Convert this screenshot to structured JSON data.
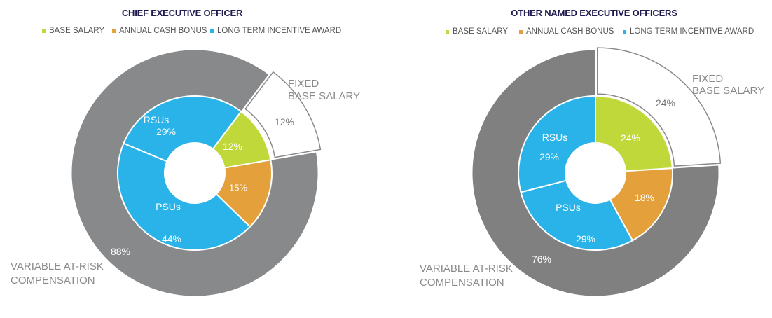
{
  "colors": {
    "base_salary": "#c1d83b",
    "annual_cash_bonus": "#e4a03b",
    "long_term_incentive": "#29b3e8",
    "variable": "#88898b",
    "variable_right": "#808080",
    "fixed_outline": "#8a8a8a",
    "title": "#1f1a50"
  },
  "legend": [
    "BASE SALARY",
    "ANNUAL CASH BONUS",
    "LONG TERM INCENTIVE AWARD"
  ],
  "chart_data": [
    {
      "type": "pie",
      "title": "CHIEF EXECUTIVE OFFICER",
      "inner": [
        {
          "name": "Base Salary",
          "label": "",
          "value": 12,
          "text": "12%"
        },
        {
          "name": "Annual Cash Bonus",
          "label": "",
          "value": 15,
          "text": "15%"
        },
        {
          "name": "PSUs",
          "label": "PSUs",
          "value": 44,
          "text": "44%"
        },
        {
          "name": "RSUs",
          "label": "RSUs",
          "value": 29,
          "text": "29%"
        }
      ],
      "outer": [
        {
          "label": "FIXED BASE SALARY",
          "label_lines": [
            "FIXED",
            "BASE SALARY"
          ],
          "value": 12,
          "text": "12%"
        },
        {
          "label": "VARIABLE AT-RISK COMPENSATION",
          "label_lines": [
            "VARIABLE AT-RISK",
            "COMPENSATION"
          ],
          "value": 88,
          "text": "88%"
        }
      ]
    },
    {
      "type": "pie",
      "title": "OTHER NAMED EXECUTIVE OFFICERS",
      "inner": [
        {
          "name": "Base Salary",
          "label": "",
          "value": 24,
          "text": "24%"
        },
        {
          "name": "Annual Cash Bonus",
          "label": "",
          "value": 18,
          "text": "18%"
        },
        {
          "name": "PSUs",
          "label": "PSUs",
          "value": 29,
          "text": "29%"
        },
        {
          "name": "RSUs",
          "label": "RSUs",
          "value": 29,
          "text": "29%"
        }
      ],
      "outer": [
        {
          "label": "FIXED BASE SALARY",
          "label_lines": [
            "FIXED",
            "BASE SALARY"
          ],
          "value": 24,
          "text": "24%"
        },
        {
          "label": "VARIABLE AT-RISK COMPENSATION",
          "label_lines": [
            "VARIABLE AT-RISK",
            "COMPENSATION"
          ],
          "value": 76,
          "text": "76%"
        }
      ]
    }
  ]
}
